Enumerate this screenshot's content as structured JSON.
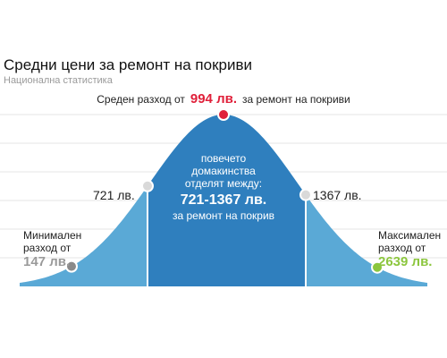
{
  "title": "Средни цени за ремонт на покриви",
  "subtitle": "Национална статистика",
  "average": {
    "prefix": "Среден разход от",
    "value": "994 лв.",
    "suffix": "за ремонт на покриви"
  },
  "center": {
    "line1": "повечето",
    "line2": "домакинства",
    "line3": "отделят между:",
    "range": "721-1367 лв.",
    "line4": "за ремонт на покрив"
  },
  "low_label": "721 лв.",
  "high_label": "1367 лв.",
  "minimum": {
    "line1": "Минимален",
    "line2": "разход от",
    "value": "147 лв."
  },
  "maximum": {
    "line1": "Максимален",
    "line2": "разход от",
    "value": "2639 лв."
  },
  "colors": {
    "curve_light": "#5aa9d6",
    "curve_dark": "#2f7fbe",
    "average_marker": "#e0203a",
    "min_marker": "#8a8a8a",
    "max_marker": "#8cc63e",
    "inner_marker": "#d9d9d9",
    "grid": "#e4e4e4"
  },
  "chart_data": {
    "type": "area",
    "title": "Средни цени за ремонт на покриви",
    "subtitle": "Национална статистика",
    "points": [
      {
        "label": "Минимален",
        "x": 147
      },
      {
        "label": "",
        "x": 721
      },
      {
        "label": "Среден",
        "x": 994
      },
      {
        "label": "",
        "x": 1367
      },
      {
        "label": "Максимален",
        "x": 2639
      }
    ],
    "highlight_range": [
      721,
      1367
    ],
    "grid": true
  }
}
